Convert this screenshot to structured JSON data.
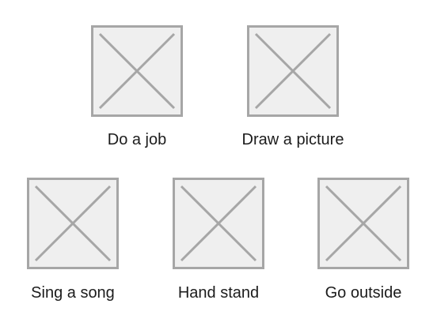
{
  "activities": [
    {
      "label": "Do a job",
      "icon": "image-placeholder-icon"
    },
    {
      "label": "Draw a picture",
      "icon": "image-placeholder-icon"
    },
    {
      "label": "Sing a song",
      "icon": "image-placeholder-icon"
    },
    {
      "label": "Hand stand",
      "icon": "image-placeholder-icon"
    },
    {
      "label": "Go outside",
      "icon": "image-placeholder-icon"
    }
  ],
  "colors": {
    "placeholder_border": "#a6a6a6",
    "placeholder_fill": "#efefef",
    "placeholder_cross": "#a6a6a6",
    "label_text": "#1c1c1c"
  }
}
